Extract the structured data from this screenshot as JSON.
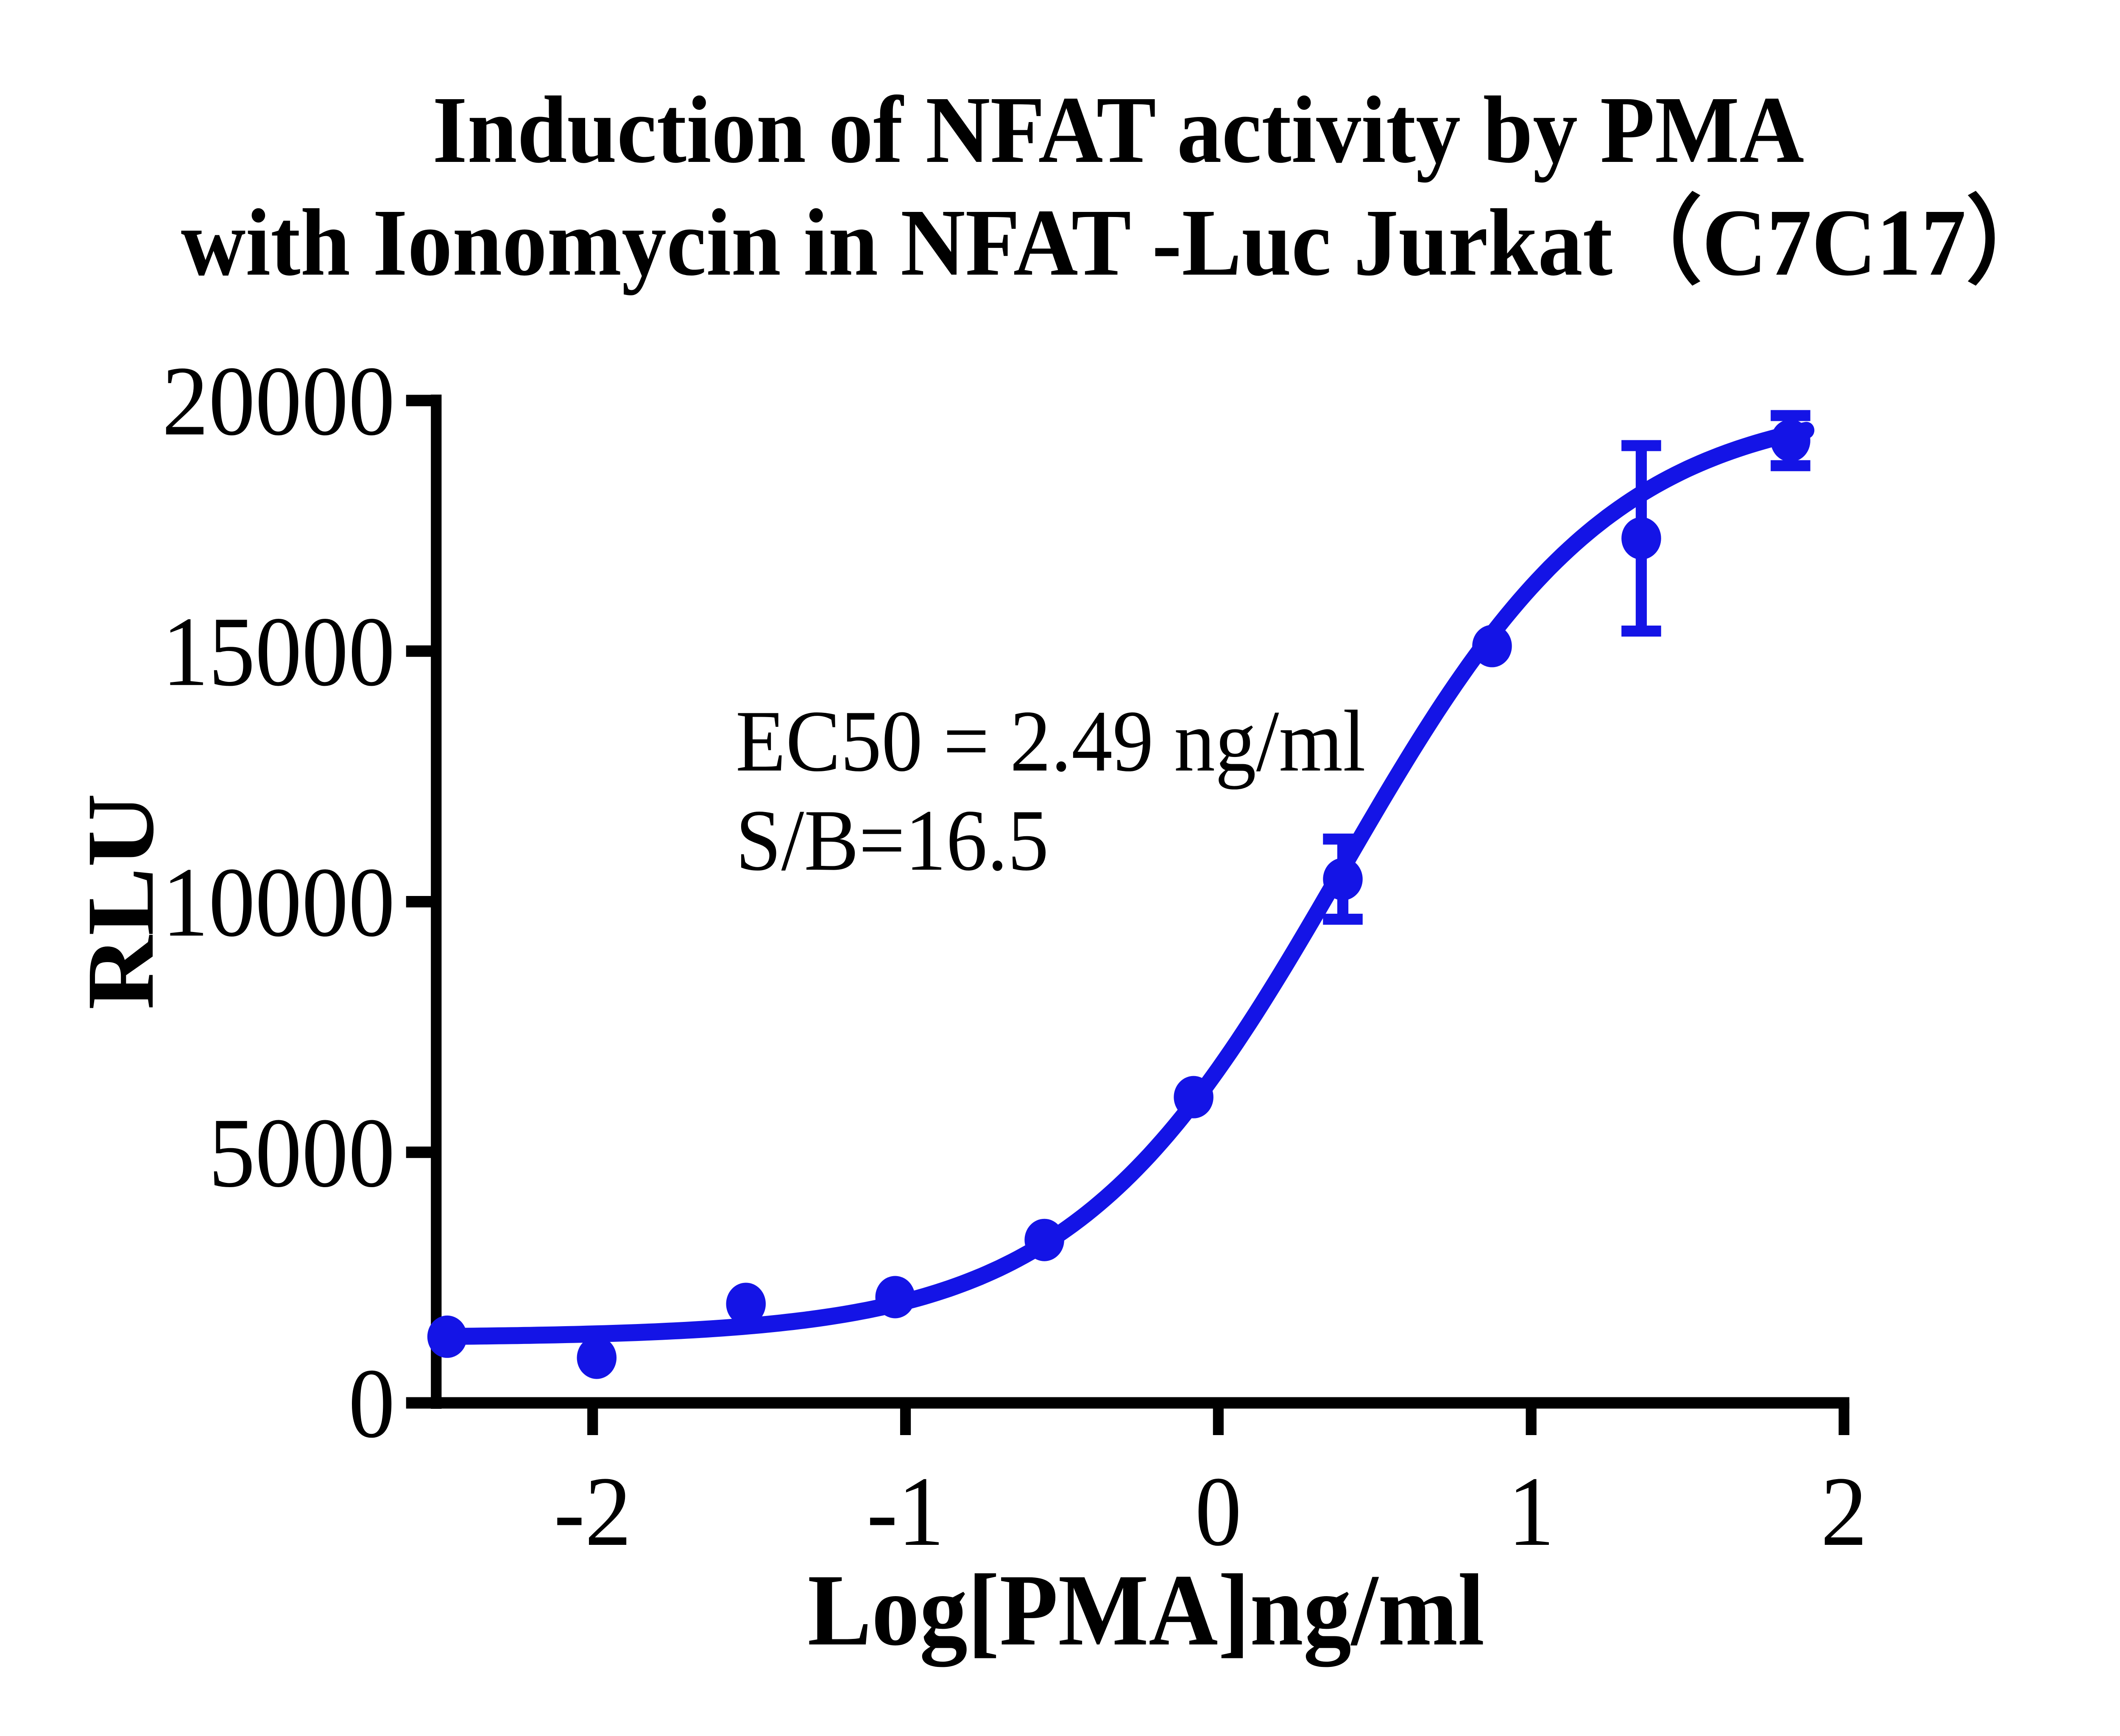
{
  "figure": {
    "background": "#ffffff",
    "text_color": "#000000"
  },
  "chart_data": {
    "type": "scatter",
    "title_lines": [
      "Induction of NFAT activity by PMA",
      "with Ionomycin in NFAT -Luc Jurkat（C7C17）"
    ],
    "xlabel": "Log[PMA]ng/ml",
    "ylabel": "RLU",
    "xlim": [
      -2.5,
      2
    ],
    "ylim": [
      0,
      20000
    ],
    "x_ticks": [
      -2,
      -1,
      0,
      1,
      2
    ],
    "y_ticks": [
      0,
      5000,
      10000,
      15000,
      20000
    ],
    "grid": false,
    "legend": "none",
    "series_color": "#1414e6",
    "points": [
      {
        "x": -2.465,
        "y": 1320,
        "err": null
      },
      {
        "x": -1.987,
        "y": 900,
        "err": null
      },
      {
        "x": -1.51,
        "y": 1975,
        "err": null
      },
      {
        "x": -1.033,
        "y": 2110,
        "err": null
      },
      {
        "x": -0.556,
        "y": 3250,
        "err": null
      },
      {
        "x": -0.079,
        "y": 6100,
        "err": null
      },
      {
        "x": 0.398,
        "y": 10450,
        "err": 800
      },
      {
        "x": 0.875,
        "y": 15100,
        "err": null
      },
      {
        "x": 1.352,
        "y": 17250,
        "err": 1850
      },
      {
        "x": 1.829,
        "y": 19200,
        "err": 500
      }
    ],
    "fit_curve": {
      "model": "4PL",
      "bottom": 1300,
      "top": 20000,
      "logEC50": 0.396,
      "hill": 1.0,
      "x_start": -2.5,
      "x_end": 1.88
    },
    "annotations": [
      "EC50 = 2.49 ng/ml",
      "S/B=16.5"
    ],
    "ec50_value": "2.49",
    "ec50_unit": "ng/ml",
    "s_over_b": "16.5"
  }
}
